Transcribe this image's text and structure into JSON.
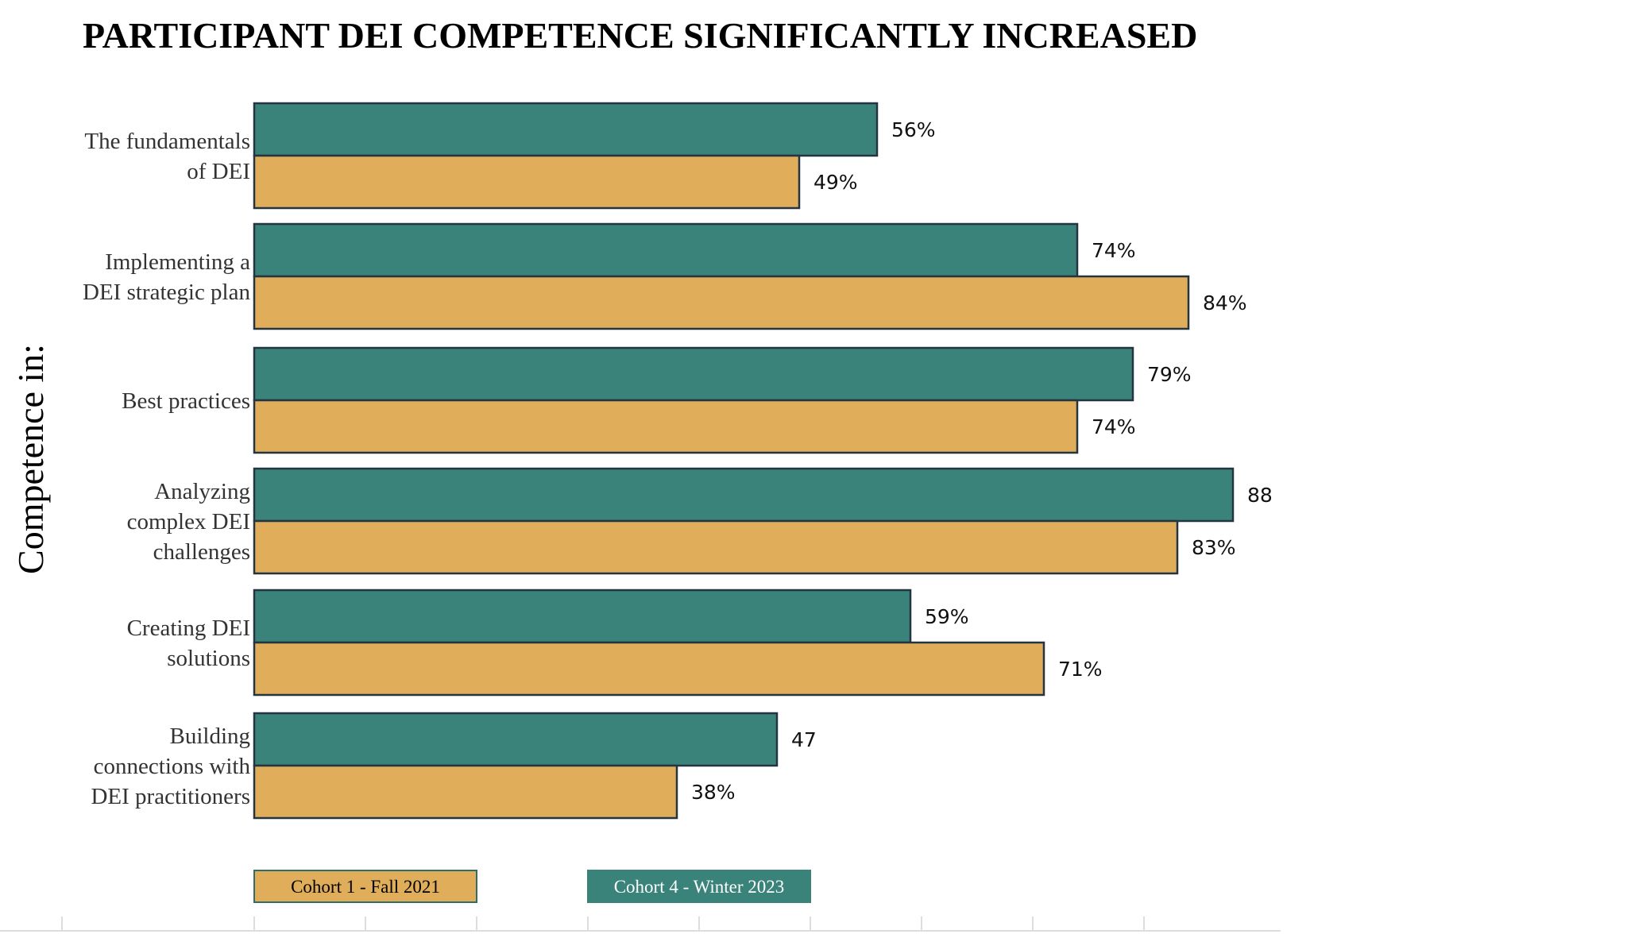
{
  "chart_data": {
    "type": "bar",
    "orientation": "horizontal",
    "title": "PARTICIPANT DEI COMPETENCE SIGNIFICANTLY INCREASED",
    "ylabel": "Competence in:",
    "xlabel": "",
    "xlim": [
      0,
      100
    ],
    "grid": false,
    "legend_position": "bottom",
    "categories": [
      [
        "The fundamentals",
        "of DEI"
      ],
      [
        "Implementing a",
        "DEI strategic plan"
      ],
      [
        "Best practices"
      ],
      [
        "Analyzing",
        "complex  DEI",
        "challenges"
      ],
      [
        "Creating DEI",
        "solutions"
      ],
      [
        "Building",
        "connections with",
        "DEI practitioners"
      ]
    ],
    "series": [
      {
        "name": "Cohort 4 - Winter 2023",
        "color": "#3a837b",
        "values": [
          56,
          74,
          79,
          88,
          59,
          47
        ],
        "labels": [
          "56%",
          "74%",
          "79%",
          "88",
          "59%",
          "47"
        ]
      },
      {
        "name": "Cohort 1 - Fall 2021",
        "color": "#e0ad5b",
        "values": [
          49,
          84,
          74,
          83,
          71,
          38
        ],
        "labels": [
          "49%",
          "84%",
          "74%",
          "83%",
          "71%",
          "38%"
        ]
      }
    ],
    "legend": [
      {
        "name": "Cohort 1 - Fall 2021",
        "color": "#e0ad5b",
        "text_color": "#000000"
      },
      {
        "name": "Cohort 4 - Winter 2023",
        "color": "#3a837b",
        "text_color": "#ffffff"
      }
    ]
  }
}
